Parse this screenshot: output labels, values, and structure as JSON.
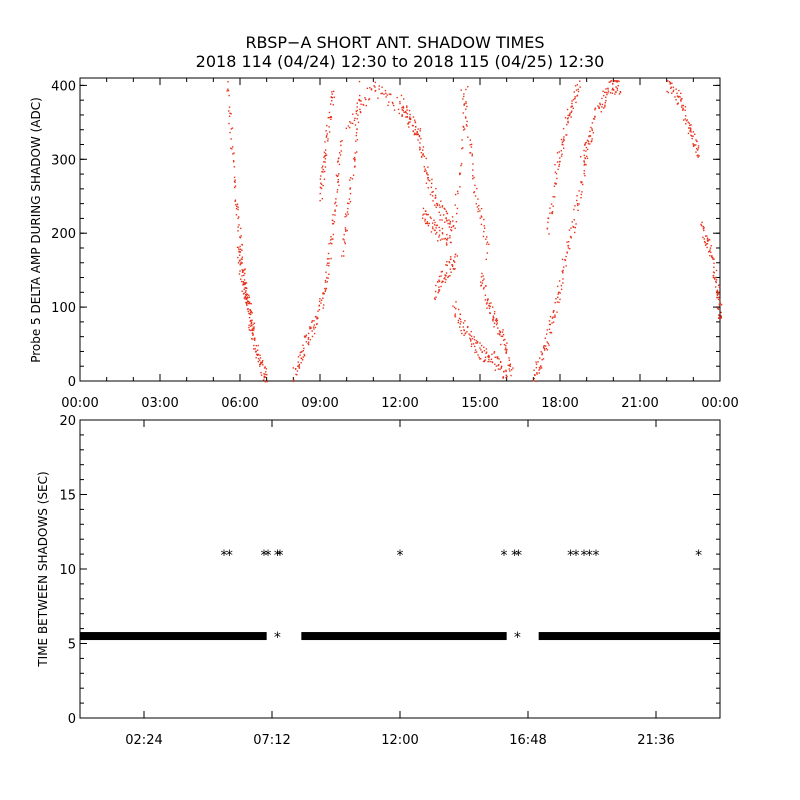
{
  "title": {
    "line1": "RBSP−A SHORT ANT. SHADOW TIMES",
    "line2": "2018 114 (04/24) 12:30 to 2018 115 (04/25) 12:30"
  },
  "colors": {
    "top_points": "#e8321c",
    "bottom_points": "#000000",
    "axes": "#000000"
  },
  "chart_data": [
    {
      "type": "scatter",
      "ylabel": "Probe 5 DELTA AMP DURING SHADOW (ADC)",
      "xlabel": "",
      "xlim": [
        0,
        24
      ],
      "ylim": [
        0,
        410
      ],
      "x_ticks": [
        0,
        3,
        6,
        9,
        12,
        15,
        18,
        21,
        24
      ],
      "x_tick_labels": [
        "00:00",
        "03:00",
        "06:00",
        "09:00",
        "12:00",
        "15:00",
        "18:00",
        "21:00",
        "00:00"
      ],
      "y_ticks": [
        0,
        100,
        200,
        300,
        400
      ],
      "y_tick_labels": [
        "0",
        "100",
        "200",
        "300",
        "400"
      ],
      "marker": "dot",
      "series": [
        {
          "segments": [
            {
              "x": [
                5.5,
                5.8,
                6.1,
                6.4,
                6.7,
                7.0
              ],
              "y": [
                400,
                260,
                150,
                70,
                25,
                5
              ]
            },
            {
              "x": [
                5.9,
                6.1,
                6.3,
                6.5
              ],
              "y": [
                180,
                130,
                110,
                60
              ]
            },
            {
              "x": [
                8.0,
                8.4,
                8.8,
                9.2,
                9.5,
                9.8
              ],
              "y": [
                10,
                50,
                80,
                130,
                230,
                330
              ]
            },
            {
              "x": [
                9.0,
                9.2,
                9.5
              ],
              "y": [
                250,
                320,
                400
              ]
            },
            {
              "x": [
                9.8,
                10.2,
                10.5
              ],
              "y": [
                170,
                280,
                400
              ]
            },
            {
              "x": [
                10.0,
                11.0,
                12.0,
                12.8
              ],
              "y": [
                340,
                400,
                370,
                330
              ]
            },
            {
              "x": [
                12.0,
                12.6,
                13.0,
                13.5,
                14.0,
                14.5
              ],
              "y": [
                380,
                340,
                280,
                230,
                210,
                400
              ]
            },
            {
              "x": [
                12.8,
                13.3,
                13.9
              ],
              "y": [
                230,
                205,
                190
              ]
            },
            {
              "x": [
                13.3,
                13.7,
                14.1
              ],
              "y": [
                120,
                150,
                165
              ]
            },
            {
              "x": [
                14.0,
                14.5,
                15.0,
                15.5,
                16.0
              ],
              "y": [
                100,
                65,
                40,
                30,
                5
              ]
            },
            {
              "x": [
                15.0,
                15.4,
                15.8,
                16.2
              ],
              "y": [
                140,
                95,
                60,
                15
              ]
            },
            {
              "x": [
                14.3,
                14.8,
                15.3
              ],
              "y": [
                400,
                260,
                170
              ]
            },
            {
              "x": [
                17.0,
                17.4,
                17.8,
                18.2,
                18.7,
                19.2
              ],
              "y": [
                5,
                40,
                100,
                170,
                250,
                340
              ]
            },
            {
              "x": [
                17.5,
                17.9,
                18.3,
                18.7
              ],
              "y": [
                200,
                300,
                360,
                400
              ]
            },
            {
              "x": [
                18.8,
                19.4,
                19.9,
                20.2
              ],
              "y": [
                300,
                370,
                400,
                400
              ]
            },
            {
              "x": [
                22.0,
                22.5,
                22.9,
                23.2
              ],
              "y": [
                400,
                380,
                340,
                300
              ]
            },
            {
              "x": [
                23.3,
                23.6,
                23.9,
                24.0
              ],
              "y": [
                210,
                180,
                120,
                90
              ]
            }
          ]
        }
      ]
    },
    {
      "type": "scatter",
      "ylabel": "TIME BETWEEN SHADOWS (SEC)",
      "xlabel": "",
      "xlim": [
        0,
        24
      ],
      "ylim": [
        0,
        20
      ],
      "x_ticks": [
        2.4,
        7.2,
        12.0,
        16.8,
        21.6
      ],
      "x_tick_labels": [
        "02:24",
        "07:12",
        "12:00",
        "16:48",
        "21:36"
      ],
      "y_ticks": [
        0,
        5,
        10,
        15,
        20
      ],
      "y_tick_labels": [
        "0",
        "5",
        "10",
        "15",
        "20"
      ],
      "marker": "asterisk",
      "series": [
        {
          "bands": [
            {
              "from": 0.0,
              "to": 7.0,
              "y": 5.5
            },
            {
              "from": 8.3,
              "to": 16.0,
              "y": 5.5
            },
            {
              "from": 17.2,
              "to": 24.0,
              "y": 5.5
            }
          ]
        },
        {
          "x": [
            7.4,
            16.4
          ],
          "y": [
            5.5,
            5.5
          ]
        },
        {
          "x": [
            5.4,
            5.6,
            6.9,
            7.05,
            7.4,
            7.5,
            12.0,
            15.9,
            16.3,
            16.45,
            18.4,
            18.6,
            18.9,
            19.1,
            19.35,
            23.2
          ],
          "y": [
            11,
            11,
            11,
            11,
            11,
            11,
            11,
            11,
            11,
            11,
            11,
            11,
            11,
            11,
            11,
            11
          ]
        }
      ]
    }
  ]
}
